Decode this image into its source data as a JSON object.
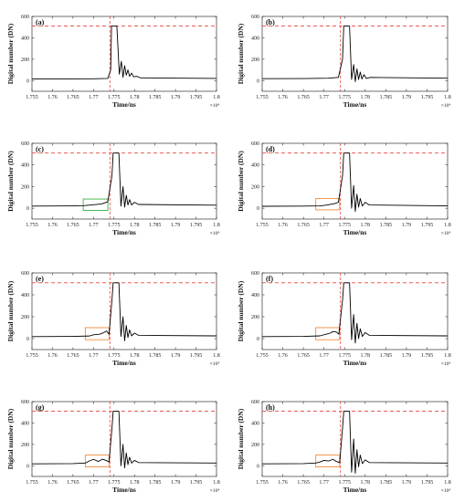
{
  "chart_data": [
    {
      "type": "line",
      "panel_label": "(a)",
      "xlabel": "Time/ns",
      "ylabel": "Digital number (DN)",
      "x_exponent": "×10⁴",
      "xlim": [
        1.755,
        1.8
      ],
      "ylim": [
        -100,
        600
      ],
      "x_ticks": [
        "1.755",
        "1.76",
        "1.765",
        "1.77",
        "1.775",
        "1.78",
        "1.785",
        "1.79",
        "1.795",
        "1.8"
      ],
      "y_ticks": [
        "0",
        "200",
        "400",
        "600"
      ],
      "saturation_level": 510,
      "trigger_time": 1.774,
      "roi_box": null,
      "series": [
        {
          "x": [
            1.755,
            1.765,
            1.77,
            1.7735,
            1.7742,
            1.7744,
            1.7757,
            1.7763,
            1.7768,
            1.7772,
            1.7776,
            1.778,
            1.7784,
            1.7788,
            1.7793,
            1.7798,
            1.7805,
            1.7815,
            1.8
          ],
          "y": [
            15,
            16,
            17,
            20,
            100,
            510,
            510,
            60,
            180,
            30,
            140,
            50,
            100,
            40,
            70,
            35,
            40,
            25,
            20
          ]
        }
      ]
    },
    {
      "type": "line",
      "panel_label": "(b)",
      "xlabel": "Time/ns",
      "ylabel": "Digital number (DN)",
      "x_exponent": "×10⁴",
      "xlim": [
        1.755,
        1.8
      ],
      "ylim": [
        -100,
        600
      ],
      "x_ticks": [
        "1.755",
        "1.76",
        "1.765",
        "1.77",
        "1.775",
        "1.78",
        "1.785",
        "1.79",
        "1.795",
        "1.8"
      ],
      "y_ticks": [
        "0",
        "200",
        "400",
        "600"
      ],
      "saturation_level": 510,
      "trigger_time": 1.774,
      "roi_box": null,
      "series": [
        {
          "x": [
            1.755,
            1.765,
            1.771,
            1.7735,
            1.7745,
            1.7748,
            1.7762,
            1.7767,
            1.7772,
            1.7776,
            1.778,
            1.7784,
            1.7788,
            1.7792,
            1.7797,
            1.7803,
            1.7812,
            1.8
          ],
          "y": [
            18,
            19,
            22,
            30,
            200,
            510,
            510,
            10,
            150,
            -10,
            110,
            10,
            80,
            15,
            55,
            20,
            30,
            22
          ]
        }
      ]
    },
    {
      "type": "line",
      "panel_label": "(c)",
      "xlabel": "Time/ns",
      "ylabel": "Digital number (DN)",
      "x_exponent": "×10⁴",
      "xlim": [
        1.755,
        1.8
      ],
      "ylim": [
        -100,
        600
      ],
      "x_ticks": [
        "1.755",
        "1.76",
        "1.765",
        "1.77",
        "1.775",
        "1.78",
        "1.785",
        "1.79",
        "1.795",
        "1.8"
      ],
      "y_ticks": [
        "0",
        "200",
        "400",
        "600"
      ],
      "saturation_level": 510,
      "trigger_time": 1.774,
      "roi_box": {
        "x": [
          1.7675,
          1.7735
        ],
        "y": [
          -20,
          85
        ],
        "color": "#3cb043"
      },
      "series": [
        {
          "x": [
            1.755,
            1.765,
            1.768,
            1.77,
            1.772,
            1.7735,
            1.7745,
            1.7748,
            1.7762,
            1.7767,
            1.7772,
            1.7776,
            1.778,
            1.7784,
            1.7788,
            1.7793,
            1.78,
            1.781,
            1.8
          ],
          "y": [
            20,
            22,
            25,
            32,
            40,
            60,
            300,
            510,
            510,
            20,
            200,
            10,
            120,
            30,
            80,
            30,
            55,
            35,
            28
          ]
        }
      ]
    },
    {
      "type": "line",
      "panel_label": "(d)",
      "xlabel": "Time/ns",
      "ylabel": "Digital number (DN)",
      "x_exponent": "×10⁴",
      "xlim": [
        1.755,
        1.8
      ],
      "ylim": [
        -100,
        600
      ],
      "x_ticks": [
        "1.755",
        "1.76",
        "1.765",
        "1.77",
        "1.775",
        "1.78",
        "1.785",
        "1.79",
        "1.795",
        "1.8"
      ],
      "y_ticks": [
        "0",
        "200",
        "400",
        "600"
      ],
      "saturation_level": 510,
      "trigger_time": 1.774,
      "roi_box": {
        "x": [
          1.768,
          1.7738
        ],
        "y": [
          -15,
          90
        ],
        "color": "#f08a3c"
      },
      "series": [
        {
          "x": [
            1.755,
            1.765,
            1.769,
            1.7705,
            1.7715,
            1.7725,
            1.7735,
            1.7745,
            1.7748,
            1.7762,
            1.7767,
            1.7772,
            1.7776,
            1.778,
            1.7784,
            1.7788,
            1.7793,
            1.78,
            1.781,
            1.8
          ],
          "y": [
            18,
            20,
            22,
            28,
            35,
            42,
            55,
            300,
            510,
            510,
            0,
            210,
            -30,
            130,
            10,
            90,
            20,
            55,
            30,
            22
          ]
        }
      ]
    },
    {
      "type": "line",
      "panel_label": "(e)",
      "xlabel": "Time/ns",
      "ylabel": "Digital number (DN)",
      "x_exponent": "×10⁴",
      "xlim": [
        1.755,
        1.8
      ],
      "ylim": [
        -100,
        600
      ],
      "x_ticks": [
        "1.755",
        "1.76",
        "1.765",
        "1.77",
        "1.775",
        "1.78",
        "1.785",
        "1.79",
        "1.795",
        "1.8"
      ],
      "y_ticks": [
        "0",
        "200",
        "400",
        "600"
      ],
      "saturation_level": 510,
      "trigger_time": 1.774,
      "roi_box": {
        "x": [
          1.768,
          1.7738
        ],
        "y": [
          -10,
          100
        ],
        "color": "#f08a3c"
      },
      "series": [
        {
          "x": [
            1.755,
            1.765,
            1.769,
            1.77,
            1.7715,
            1.7725,
            1.7732,
            1.7738,
            1.7745,
            1.7748,
            1.7762,
            1.7767,
            1.7772,
            1.7776,
            1.778,
            1.7784,
            1.7788,
            1.7793,
            1.78,
            1.781,
            1.8
          ],
          "y": [
            18,
            20,
            24,
            35,
            40,
            55,
            70,
            40,
            350,
            510,
            510,
            20,
            200,
            -20,
            120,
            10,
            80,
            25,
            50,
            30,
            25
          ]
        }
      ]
    },
    {
      "type": "line",
      "panel_label": "(f)",
      "xlabel": "Time/ns",
      "ylabel": "Digital number (DN)",
      "x_exponent": "×10⁴",
      "xlim": [
        1.755,
        1.8
      ],
      "ylim": [
        -100,
        600
      ],
      "x_ticks": [
        "1.755",
        "1.76",
        "1.765",
        "1.77",
        "1.775",
        "1.78",
        "1.785",
        "1.79",
        "1.795",
        "1.8"
      ],
      "y_ticks": [
        "0",
        "200",
        "400",
        "600"
      ],
      "saturation_level": 510,
      "trigger_time": 1.774,
      "roi_box": {
        "x": [
          1.768,
          1.7738
        ],
        "y": [
          -10,
          100
        ],
        "color": "#f08a3c"
      },
      "series": [
        {
          "x": [
            1.755,
            1.765,
            1.769,
            1.7705,
            1.7715,
            1.7722,
            1.773,
            1.7736,
            1.7745,
            1.7748,
            1.7762,
            1.7767,
            1.7772,
            1.7776,
            1.778,
            1.7784,
            1.7788,
            1.7793,
            1.78,
            1.781,
            1.8
          ],
          "y": [
            18,
            20,
            25,
            40,
            50,
            65,
            60,
            40,
            350,
            510,
            510,
            -10,
            220,
            -40,
            140,
            0,
            90,
            20,
            55,
            30,
            25
          ]
        }
      ]
    },
    {
      "type": "line",
      "panel_label": "(g)",
      "xlabel": "Time/ns",
      "ylabel": "Digital number (DN)",
      "x_exponent": "×10⁴",
      "xlim": [
        1.755,
        1.8
      ],
      "ylim": [
        -100,
        600
      ],
      "x_ticks": [
        "1.755",
        "1.76",
        "1.765",
        "1.77",
        "1.775",
        "1.78",
        "1.785",
        "1.79",
        "1.795",
        "1.8"
      ],
      "y_ticks": [
        "0",
        "200",
        "400",
        "600"
      ],
      "saturation_level": 510,
      "trigger_time": 1.774,
      "roi_box": {
        "x": [
          1.768,
          1.7738
        ],
        "y": [
          -10,
          100
        ],
        "color": "#f08a3c"
      },
      "series": [
        {
          "x": [
            1.755,
            1.765,
            1.768,
            1.769,
            1.77,
            1.7712,
            1.7722,
            1.7732,
            1.7738,
            1.7745,
            1.7748,
            1.7762,
            1.7767,
            1.7772,
            1.7776,
            1.778,
            1.7784,
            1.7788,
            1.7793,
            1.78,
            1.781,
            1.8
          ],
          "y": [
            18,
            20,
            25,
            45,
            60,
            40,
            62,
            48,
            35,
            350,
            510,
            510,
            0,
            200,
            -20,
            120,
            10,
            80,
            25,
            50,
            30,
            25
          ]
        }
      ]
    },
    {
      "type": "line",
      "panel_label": "(h)",
      "xlabel": "Time/ns",
      "ylabel": "Digital number (DN)",
      "x_exponent": "×10⁴",
      "xlim": [
        1.755,
        1.8
      ],
      "ylim": [
        -100,
        600
      ],
      "x_ticks": [
        "1.755",
        "1.76",
        "1.765",
        "1.77",
        "1.775",
        "1.78",
        "1.785",
        "1.79",
        "1.795",
        "1.8"
      ],
      "y_ticks": [
        "0",
        "200",
        "400",
        "600"
      ],
      "saturation_level": 510,
      "trigger_time": 1.774,
      "roi_box": {
        "x": [
          1.768,
          1.7738
        ],
        "y": [
          -10,
          100
        ],
        "color": "#f08a3c"
      },
      "series": [
        {
          "x": [
            1.755,
            1.765,
            1.768,
            1.769,
            1.77,
            1.7712,
            1.7722,
            1.773,
            1.7738,
            1.7745,
            1.7748,
            1.7762,
            1.7767,
            1.7772,
            1.7776,
            1.778,
            1.7784,
            1.7788,
            1.7793,
            1.78,
            1.781,
            1.8
          ],
          "y": [
            18,
            20,
            25,
            35,
            50,
            45,
            60,
            40,
            30,
            350,
            510,
            510,
            -60,
            250,
            -70,
            150,
            -10,
            100,
            20,
            55,
            30,
            25
          ]
        }
      ]
    }
  ],
  "colors": {
    "signal": "#000000",
    "saturation_line": "#e8453c",
    "trigger_line": "#e8453c",
    "axes": "#333333"
  }
}
